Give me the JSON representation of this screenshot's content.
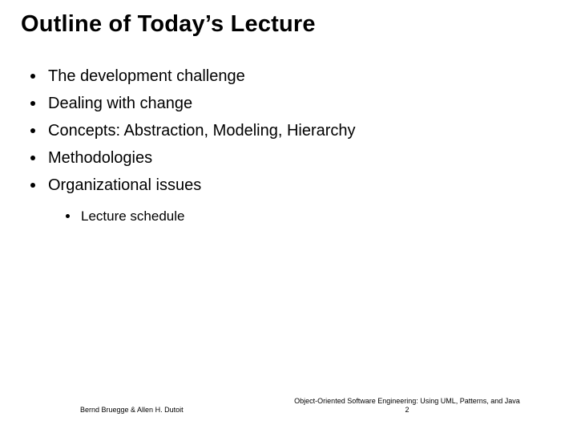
{
  "title": "Outline of Today’s Lecture",
  "title_fontsize": 29,
  "title_font": "Trebuchet MS",
  "title_color": "#000000",
  "bullets": [
    "The development challenge",
    "Dealing with change",
    "Concepts: Abstraction, Modeling, Hierarchy",
    "Methodologies",
    "Organizational issues"
  ],
  "bullet_fontsize": 20,
  "bullet_color": "#000000",
  "dot_color": "#000000",
  "sub_bullets": [
    "Lecture schedule"
  ],
  "sub_fontsize": 17,
  "footer_left": "Bernd Bruegge & Allen H. Dutoit",
  "footer_right": "Object-Oriented Software Engineering: Using UML, Patterns, and Java",
  "page_number": "2",
  "footer_fontsize": 9,
  "background_color": "#ffffff",
  "slide_width": 720,
  "slide_height": 540
}
